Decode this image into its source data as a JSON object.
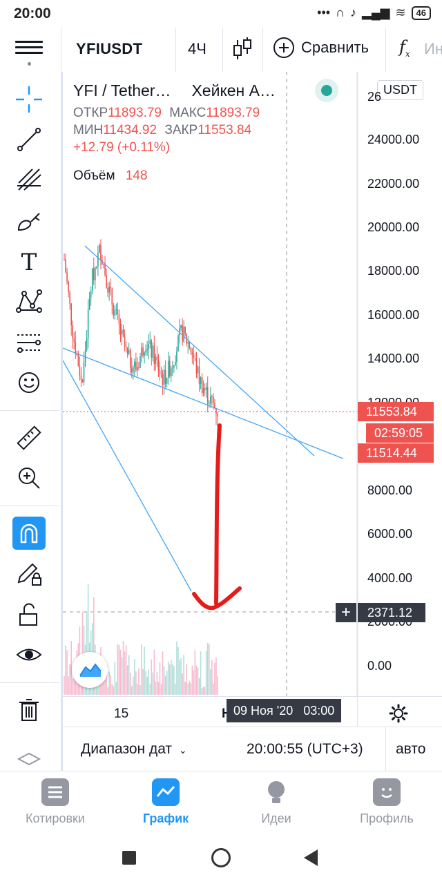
{
  "status_bar": {
    "time": "20:00",
    "battery": "46"
  },
  "toolbar": {
    "symbol": "YFIUSDT",
    "interval": "4Ч",
    "compare_label": "Сравнить",
    "indicators_label": "Ин"
  },
  "legend": {
    "title": "YFI / Tether…",
    "chart_style": "Хейкен А…",
    "open_label": "ОТКР",
    "open": "11893.79",
    "high_label": "МАКС",
    "high": "11893.79",
    "low_label": "МИН",
    "low": "11434.92",
    "close_label": "ЗАКР",
    "close": "11553.84",
    "change": "+12.79 (+0.11%)",
    "volume_label": "Объём",
    "volume": "148"
  },
  "currency_badge": "USDT",
  "price_axis": {
    "labels": [
      "24000.00",
      "22000.00",
      "20000.00",
      "18000.00",
      "16000.00",
      "14000.00",
      "8000.00",
      "6000.00",
      "4000.00",
      "0.00"
    ],
    "partial_top": "26",
    "partial_hidden": [
      "12000.00",
      "2000.00"
    ]
  },
  "price_tags": {
    "last_price": "11553.84",
    "countdown": "02:59:05",
    "second_price": "11514.44",
    "crosshair_price": "2371.12"
  },
  "time_axis": {
    "label_15": "15",
    "label_partial": "Н",
    "crosshair_time": "09 Ноя '20   03:00"
  },
  "range_bar": {
    "date_range": "Диапазон дат",
    "clock": "20:00:55 (UTC+3)",
    "scale": "авто"
  },
  "bottom_nav": [
    {
      "label": "Котировки",
      "active": false
    },
    {
      "label": "График",
      "active": true
    },
    {
      "label": "Идеи",
      "active": false
    },
    {
      "label": "Профиль",
      "active": false
    }
  ],
  "colors": {
    "accent": "#2196f3",
    "up": "#26a69a",
    "down": "#ef5350",
    "trendline": "#42a5f5"
  },
  "chart_data": {
    "type": "candlestick",
    "title": "",
    "y_axis_range": [
      0,
      26000
    ],
    "x_labels": [
      "15",
      "Н"
    ],
    "trend": "downtrend within a descending wedge, price near 11553.84",
    "approx_closes": [
      18500,
      15000,
      12800,
      17500,
      19000,
      17000,
      15500,
      14000,
      13500,
      14800,
      14000,
      13000,
      13800,
      15200,
      14500,
      13000,
      12200,
      11553.84
    ]
  }
}
